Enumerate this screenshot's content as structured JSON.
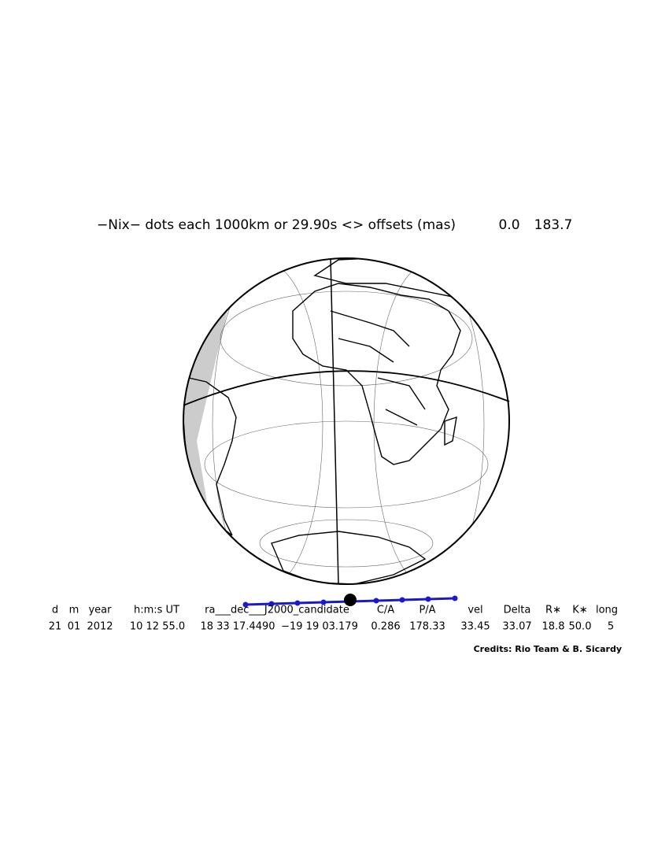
{
  "header": {
    "title": "−Nix− dots each 1000km or 29.90s <> offsets (mas)",
    "offsets": [
      "0.0",
      "183.7"
    ]
  },
  "table": {
    "columns": [
      "d",
      "m",
      "year",
      "h:m:s UT",
      "ra___dec___J2000_candidate",
      "C/A",
      "P/A",
      "vel",
      "Delta",
      "R∗",
      "K∗",
      "long"
    ],
    "values": [
      "21",
      "01",
      "2012",
      "10 12 55.0",
      "18 33 17.4490",
      "−19 19 03.179",
      "0.286",
      "178.33",
      "33.45",
      "33.07",
      "18.8",
      "50.0",
      "5"
    ]
  },
  "credits": "Credits: Rio Team & B. Sicardy"
}
